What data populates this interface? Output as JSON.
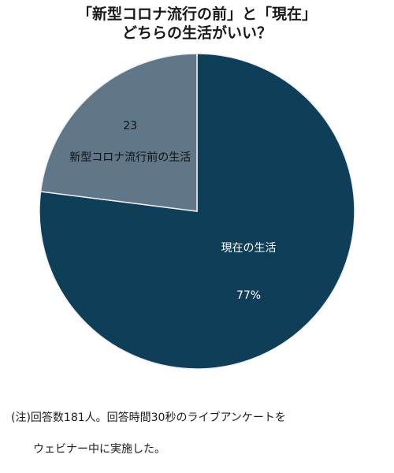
{
  "title_lines": [
    "「新型コロナ流行の前」と「現在」",
    "どちらの生活がいい？"
  ],
  "note_lines": [
    "(注)回答数181人。回答時間30秒のライブアンケートを",
    "　　ウェビナー中に実施した。"
  ],
  "colors": {
    "dark": "#0e3e58",
    "light": "#5f7789",
    "border": "#f0f0f0",
    "text_on_dark": "#ffffff",
    "text_on_light": "#111111"
  },
  "chart_data": {
    "type": "pie",
    "slices": [
      {
        "label": "現在の生活",
        "value": 77,
        "value_label": "77%"
      },
      {
        "label": "新型コロナ流行前の生活",
        "value": 23,
        "value_label": "23"
      }
    ]
  }
}
